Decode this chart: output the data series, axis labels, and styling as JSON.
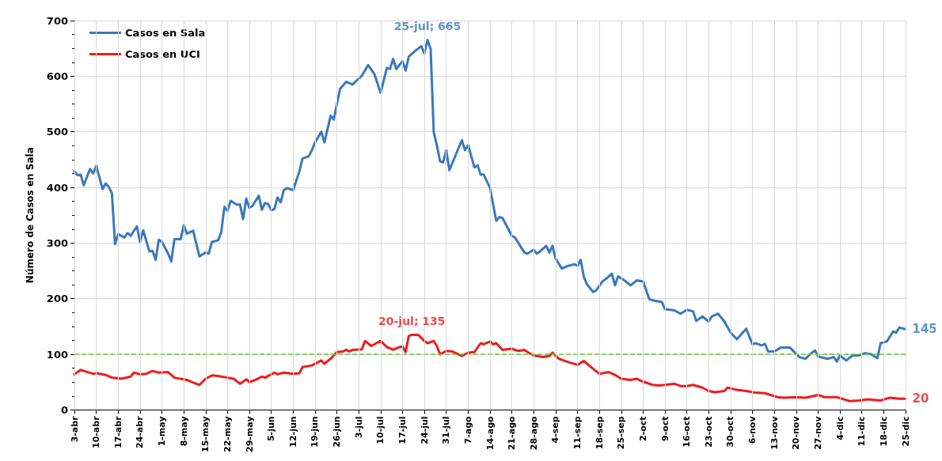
{
  "chart_data": {
    "type": "line",
    "ylabel": "Número de Casos en Sala",
    "legend": "top left",
    "grid": true,
    "marker": "none",
    "line_style": "solid",
    "xlim": [
      "--04-03",
      "--12-25"
    ],
    "xticks": [
      {
        "value": "--04-03",
        "label": "3-abr"
      },
      {
        "value": "--04-10",
        "label": "10-abr"
      },
      {
        "value": "--04-17",
        "label": "17-abr"
      },
      {
        "value": "--04-24",
        "label": "24-abr"
      },
      {
        "value": "--05-01",
        "label": "1-may"
      },
      {
        "value": "--05-08",
        "label": "8-may"
      },
      {
        "value": "--05-15",
        "label": "15-may"
      },
      {
        "value": "--05-22",
        "label": "22-may"
      },
      {
        "value": "--05-29",
        "label": "29-may"
      },
      {
        "value": "--06-05",
        "label": "5-jun"
      },
      {
        "value": "--06-12",
        "label": "12-jun"
      },
      {
        "value": "--06-19",
        "label": "19-jun"
      },
      {
        "value": "--06-26",
        "label": "26-jun"
      },
      {
        "value": "--07-03",
        "label": "3-jul"
      },
      {
        "value": "--07-10",
        "label": "10-jul"
      },
      {
        "value": "--07-17",
        "label": "17-jul"
      },
      {
        "value": "--07-24",
        "label": "24-jul"
      },
      {
        "value": "--07-31",
        "label": "31-jul"
      },
      {
        "value": "--08-07",
        "label": "7-ago"
      },
      {
        "value": "--08-14",
        "label": "14-ago"
      },
      {
        "value": "--08-21",
        "label": "21-ago"
      },
      {
        "value": "--08-28",
        "label": "28-ago"
      },
      {
        "value": "--09-04",
        "label": "4-sep"
      },
      {
        "value": "--09-11",
        "label": "11-sep"
      },
      {
        "value": "--09-18",
        "label": "18-sep"
      },
      {
        "value": "--09-25",
        "label": "25-sep"
      },
      {
        "value": "--10-02",
        "label": "2-oct"
      },
      {
        "value": "--10-09",
        "label": "9-oct"
      },
      {
        "value": "--10-16",
        "label": "16-oct"
      },
      {
        "value": "--10-23",
        "label": "23-oct"
      },
      {
        "value": "--10-30",
        "label": "30-oct"
      },
      {
        "value": "--11-06",
        "label": "6-nov"
      },
      {
        "value": "--11-13",
        "label": "13-nov"
      },
      {
        "value": "--11-20",
        "label": "20-nov"
      },
      {
        "value": "--11-27",
        "label": "27-nov"
      },
      {
        "value": "--12-04",
        "label": "4-dic"
      },
      {
        "value": "--12-11",
        "label": "11-dic"
      },
      {
        "value": "--12-18",
        "label": "18-dic"
      },
      {
        "value": "--12-25",
        "label": "25-dic"
      }
    ],
    "ylim": [
      0,
      700
    ],
    "yticks": [
      0,
      100,
      200,
      300,
      400,
      500,
      600,
      700
    ],
    "ref_lines": [
      {
        "axis": "y",
        "value": 100,
        "color": "#66cc33",
        "line_style": "dashed"
      }
    ],
    "annotations": [
      {
        "text": "25-jul; 665",
        "x": "--07-25",
        "y": 665
      },
      {
        "text": "20-jul; 135",
        "x": "--07-20",
        "y": 135
      },
      {
        "text": "145",
        "x": "--12-25",
        "y": 145
      },
      {
        "text": "20",
        "x": "--12-25",
        "y": 20
      }
    ],
    "series": [
      {
        "name": "Casos en Sala",
        "color": "#3a78bd",
        "x": [
          "--04-03",
          "--04-04",
          "--04-05",
          "--04-06",
          "--04-08",
          "--04-09",
          "--04-10",
          "--04-12",
          "--04-13",
          "--04-14",
          "--04-15",
          "--04-16",
          "--04-17",
          "--04-19",
          "--04-20",
          "--04-21",
          "--04-23",
          "--04-24",
          "--04-25",
          "--04-27",
          "--04-28",
          "--04-29",
          "--04-30",
          "--05-01",
          "--05-03",
          "--05-04",
          "--05-05",
          "--05-07",
          "--05-08",
          "--05-09",
          "--05-11",
          "--05-13",
          "--05-15",
          "--05-16",
          "--05-17",
          "--05-19",
          "--05-20",
          "--05-21",
          "--05-22",
          "--05-23",
          "--05-25",
          "--05-26",
          "--05-27",
          "--05-28",
          "--05-29",
          "--05-30",
          "--06-01",
          "--06-02",
          "--06-03",
          "--06-04",
          "--06-05",
          "--06-06",
          "--06-07",
          "--06-08",
          "--06-09",
          "--06-10",
          "--06-12",
          "--06-14",
          "--06-15",
          "--06-17",
          "--06-18",
          "--06-19",
          "--06-21",
          "--06-22",
          "--06-24",
          "--06-25",
          "--06-27",
          "--06-29",
          "--07-01",
          "--07-04",
          "--07-06",
          "--07-08",
          "--07-10",
          "--07-12",
          "--07-13",
          "--07-14",
          "--07-15",
          "--07-17",
          "--07-18",
          "--07-19",
          "--07-21",
          "--07-23",
          "--07-24",
          "--07-25",
          "--07-26",
          "--07-27",
          "--07-28",
          "--07-29",
          "--07-30",
          "--07-31",
          "--08-01",
          "--08-03",
          "--08-05",
          "--08-06",
          "--08-07",
          "--08-09",
          "--08-10",
          "--08-11",
          "--08-12",
          "--08-14",
          "--08-16",
          "--08-17",
          "--08-18",
          "--08-21",
          "--08-22",
          "--08-25",
          "--08-26",
          "--08-28",
          "--08-29",
          "--08-30",
          "--09-01",
          "--09-02",
          "--09-03",
          "--09-04",
          "--09-06",
          "--09-08",
          "--09-10",
          "--09-11",
          "--09-12",
          "--09-13",
          "--09-14",
          "--09-16",
          "--09-17",
          "--09-19",
          "--09-20",
          "--09-22",
          "--09-23",
          "--09-24",
          "--09-26",
          "--09-28",
          "--09-30",
          "--10-02",
          "--10-04",
          "--10-05",
          "--10-08",
          "--10-09",
          "--10-12",
          "--10-14",
          "--10-16",
          "--10-18",
          "--10-19",
          "--10-21",
          "--10-23",
          "--10-24",
          "--10-26",
          "--10-28",
          "--10-30",
          "--11-01",
          "--11-04",
          "--11-06",
          "--11-07",
          "--11-09",
          "--11-10",
          "--11-11",
          "--11-13",
          "--11-15",
          "--11-18",
          "--11-21",
          "--11-23",
          "--11-24",
          "--11-26",
          "--11-27",
          "--11-30",
          "--12-02",
          "--12-03",
          "--12-04",
          "--12-06",
          "--12-08",
          "--12-10",
          "--12-12",
          "--12-14",
          "--12-16",
          "--12-17",
          "--12-19",
          "--12-21",
          "--12-22",
          "--12-23",
          "--12-25"
        ],
        "values": [
          429,
          422,
          423,
          404,
          433,
          425,
          439,
          397,
          407,
          401,
          390,
          298,
          316,
          310,
          318,
          313,
          330,
          302,
          323,
          285,
          286,
          270,
          306,
          302,
          281,
          267,
          307,
          307,
          332,
          317,
          322,
          276,
          283,
          281,
          302,
          305,
          320,
          365,
          358,
          376,
          369,
          369,
          343,
          380,
          363,
          367,
          385,
          360,
          372,
          370,
          359,
          361,
          382,
          373,
          395,
          399,
          395,
          429,
          452,
          456,
          467,
          481,
          500,
          481,
          529,
          522,
          577,
          590,
          585,
          601,
          620,
          604,
          570,
          615,
          613,
          631,
          613,
          627,
          610,
          635,
          645,
          654,
          641,
          665,
          649,
          499,
          476,
          447,
          445,
          467,
          431,
          458,
          485,
          467,
          476,
          436,
          440,
          423,
          423,
          399,
          340,
          347,
          345,
          313,
          310,
          283,
          281,
          288,
          281,
          285,
          295,
          283,
          295,
          272,
          254,
          259,
          262,
          259,
          270,
          240,
          226,
          212,
          215,
          231,
          235,
          245,
          224,
          240,
          233,
          224,
          233,
          231,
          199,
          197,
          194,
          181,
          179,
          173,
          180,
          177,
          160,
          168,
          159,
          168,
          173,
          159,
          139,
          127,
          146,
          118,
          120,
          116,
          119,
          105,
          105,
          112,
          112,
          95,
          92,
          98,
          107,
          96,
          92,
          95,
          87,
          98,
          89,
          98,
          98,
          102,
          100,
          93,
          120,
          123,
          141,
          139,
          148,
          145
        ]
      },
      {
        "name": "Casos en UCI",
        "color": "#ee1c1c",
        "x": [
          "--04-03",
          "--04-05",
          "--04-06",
          "--04-09",
          "--04-10",
          "--04-13",
          "--04-15",
          "--04-18",
          "--04-21",
          "--04-22",
          "--04-24",
          "--04-26",
          "--04-28",
          "--04-30",
          "--05-03",
          "--05-05",
          "--05-09",
          "--05-11",
          "--05-13",
          "--05-15",
          "--05-17",
          "--05-19",
          "--05-22",
          "--05-24",
          "--05-26",
          "--05-28",
          "--05-29",
          "--05-31",
          "--06-02",
          "--06-03",
          "--06-06",
          "--06-07",
          "--06-09",
          "--06-12",
          "--06-14",
          "--06-15",
          "--06-18",
          "--06-19",
          "--06-21",
          "--06-22",
          "--06-24",
          "--06-26",
          "--06-28",
          "--06-29",
          "--06-30",
          "--07-01",
          "--07-04",
          "--07-05",
          "--07-07",
          "--07-10",
          "--07-12",
          "--07-14",
          "--07-16",
          "--07-17",
          "--07-18",
          "--07-19",
          "--07-20",
          "--07-22",
          "--07-24",
          "--07-25",
          "--07-27",
          "--07-28",
          "--07-29",
          "--07-31",
          "--08-02",
          "--08-05",
          "--08-07",
          "--08-09",
          "--08-11",
          "--08-12",
          "--08-14",
          "--08-15",
          "--08-16",
          "--08-18",
          "--08-21",
          "--08-23",
          "--08-25",
          "--08-26",
          "--08-28",
          "--08-31",
          "--09-02",
          "--09-03",
          "--09-05",
          "--09-08",
          "--09-11",
          "--09-13",
          "--09-16",
          "--09-18",
          "--09-21",
          "--09-23",
          "--09-25",
          "--09-28",
          "--09-30",
          "--10-02",
          "--10-05",
          "--10-07",
          "--10-09",
          "--10-12",
          "--10-14",
          "--10-16",
          "--10-18",
          "--10-21",
          "--10-23",
          "--10-25",
          "--10-28",
          "--10-29",
          "--11-01",
          "--11-04",
          "--11-07",
          "--11-10",
          "--11-14",
          "--11-16",
          "--11-20",
          "--11-23",
          "--11-27",
          "--11-29",
          "--12-03",
          "--12-07",
          "--12-10",
          "--12-13",
          "--12-17",
          "--12-20",
          "--12-23",
          "--12-25"
        ],
        "values": [
          64,
          72,
          70,
          65,
          66,
          63,
          58,
          56,
          60,
          67,
          64,
          65,
          70,
          67,
          68,
          58,
          54,
          49,
          45,
          56,
          62,
          61,
          58,
          56,
          47,
          55,
          50,
          54,
          60,
          58,
          67,
          64,
          67,
          65,
          66,
          77,
          80,
          83,
          89,
          83,
          92,
          104,
          105,
          108,
          105,
          108,
          109,
          124,
          115,
          124,
          113,
          108,
          113,
          114,
          104,
          133,
          135,
          135,
          124,
          120,
          124,
          115,
          100,
          106,
          105,
          97,
          103,
          104,
          120,
          118,
          123,
          118,
          120,
          108,
          110,
          106,
          108,
          104,
          98,
          95,
          97,
          103,
          92,
          86,
          81,
          88,
          74,
          65,
          68,
          63,
          56,
          54,
          56,
          51,
          45,
          44,
          45,
          47,
          43,
          43,
          45,
          40,
          34,
          32,
          34,
          40,
          36,
          34,
          31,
          30,
          23,
          22,
          23,
          22,
          27,
          23,
          23,
          16,
          17,
          19,
          17,
          22,
          20,
          20
        ]
      }
    ]
  }
}
